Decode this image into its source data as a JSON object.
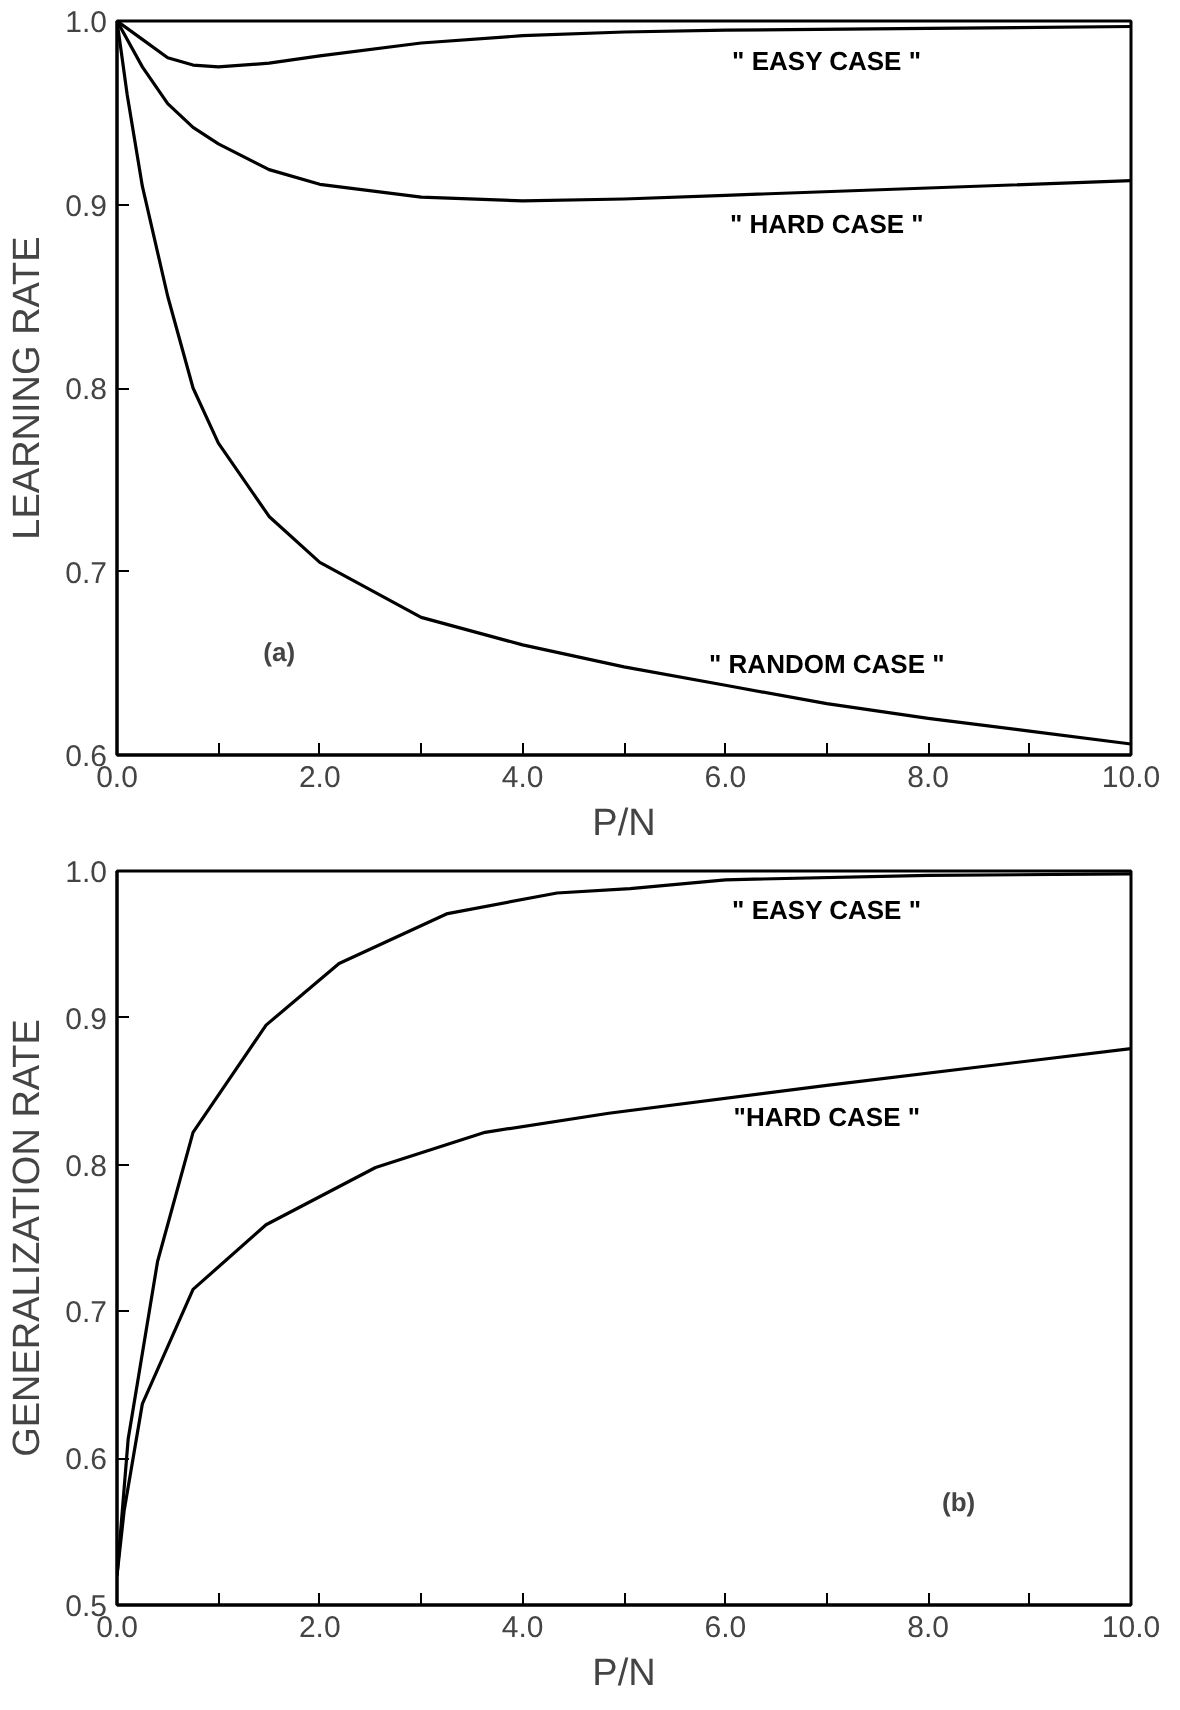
{
  "chart_data": [
    {
      "type": "line",
      "xlabel": "P/N",
      "ylabel": "LEARNING RATE",
      "xlim": [
        0,
        10
      ],
      "ylim": [
        0.6,
        1.0
      ],
      "xticks": [
        {
          "value": 0,
          "label": "0.0"
        },
        {
          "value": 1,
          "label": null
        },
        {
          "value": 2,
          "label": "2.0"
        },
        {
          "value": 3,
          "label": null
        },
        {
          "value": 4,
          "label": "4.0"
        },
        {
          "value": 5,
          "label": null
        },
        {
          "value": 6,
          "label": "6.0"
        },
        {
          "value": 7,
          "label": null
        },
        {
          "value": 8,
          "label": "8.0"
        },
        {
          "value": 9,
          "label": null
        },
        {
          "value": 10,
          "label": "10.0"
        }
      ],
      "yticks": [
        {
          "value": 0.6,
          "label": "0.6"
        },
        {
          "value": 0.7,
          "label": "0.7"
        },
        {
          "value": 0.8,
          "label": "0.8"
        },
        {
          "value": 0.9,
          "label": "0.9"
        },
        {
          "value": 1.0,
          "label": "1.0"
        }
      ],
      "series": [
        {
          "name": "\" EASY CASE \"",
          "color": "#000000",
          "x": [
            0,
            0.25,
            0.5,
            0.75,
            1,
            1.5,
            2,
            3,
            4,
            5,
            6,
            8,
            10
          ],
          "values": [
            1,
            0.99,
            0.98,
            0.976,
            0.975,
            0.977,
            0.981,
            0.988,
            0.992,
            0.994,
            0.995,
            0.996,
            0.997
          ]
        },
        {
          "name": "\" HARD CASE \"",
          "color": "#000000",
          "x": [
            0,
            0.25,
            0.5,
            0.75,
            1,
            1.5,
            2,
            3,
            4,
            5,
            6,
            8,
            10
          ],
          "values": [
            1,
            0.975,
            0.955,
            0.942,
            0.933,
            0.919,
            0.911,
            0.904,
            0.902,
            0.903,
            0.905,
            0.909,
            0.913
          ]
        },
        {
          "name": "\" RANDOM CASE \"",
          "color": "#000000",
          "x": [
            0,
            0.1,
            0.25,
            0.5,
            0.75,
            1,
            1.5,
            2,
            3,
            4,
            5,
            6,
            7,
            8,
            9,
            10
          ],
          "values": [
            1,
            0.96,
            0.91,
            0.85,
            0.8,
            0.77,
            0.73,
            0.705,
            0.675,
            0.66,
            0.648,
            0.638,
            0.628,
            0.62,
            0.613,
            0.606
          ]
        }
      ],
      "annotations": [
        "(a)"
      ]
    },
    {
      "type": "line",
      "xlabel": "P/N",
      "ylabel": "GENERALIZATION RATE",
      "xlim": [
        0,
        10
      ],
      "ylim": [
        0.5,
        1.0
      ],
      "xticks": [
        {
          "value": 0,
          "label": "0.0"
        },
        {
          "value": 1,
          "label": null
        },
        {
          "value": 2,
          "label": "2.0"
        },
        {
          "value": 3,
          "label": null
        },
        {
          "value": 4,
          "label": "4.0"
        },
        {
          "value": 5,
          "label": null
        },
        {
          "value": 6,
          "label": "6.0"
        },
        {
          "value": 7,
          "label": null
        },
        {
          "value": 8,
          "label": "8.0"
        },
        {
          "value": 9,
          "label": null
        },
        {
          "value": 10,
          "label": "10.0"
        }
      ],
      "yticks": [
        {
          "value": 0.5,
          "label": "0.5"
        },
        {
          "value": 0.6,
          "label": "0.6"
        },
        {
          "value": 0.7,
          "label": "0.7"
        },
        {
          "value": 0.8,
          "label": "0.8"
        },
        {
          "value": 0.9,
          "label": "0.9"
        },
        {
          "value": 1.0,
          "label": "1.0"
        }
      ],
      "series": [
        {
          "name": "\" EASY CASE \"",
          "color": "#000000",
          "x": [
            0,
            0.11,
            0.4,
            0.75,
            1.47,
            2.19,
            3.26,
            4.34,
            5.06,
            6,
            8,
            10
          ],
          "values": [
            0.52,
            0.613,
            0.734,
            0.822,
            0.895,
            0.937,
            0.971,
            0.985,
            0.988,
            0.994,
            0.997,
            0.998
          ]
        },
        {
          "name": "\"HARD CASE \"",
          "color": "#000000",
          "x": [
            0,
            0.07,
            0.25,
            0.75,
            1.47,
            2.55,
            3.63,
            4.85,
            7,
            10
          ],
          "values": [
            0.52,
            0.564,
            0.637,
            0.715,
            0.759,
            0.798,
            0.822,
            0.835,
            0.854,
            0.879
          ]
        }
      ],
      "annotations": [
        "(b)"
      ]
    }
  ]
}
